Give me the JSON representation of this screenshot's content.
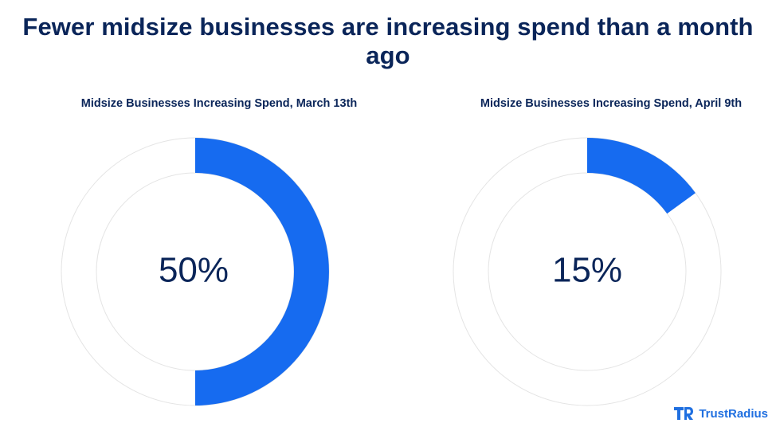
{
  "title": "Fewer midsize businesses are increasing spend than a month ago",
  "colors": {
    "accent": "#166bf0",
    "track": "#ffffff",
    "track_stroke": "#e4e4e4",
    "text": "#0a2559",
    "brand": "#1f6fe0"
  },
  "brand": {
    "name": "TrustRadius",
    "icon": "trustradius-logo-icon"
  },
  "chart_data": [
    {
      "type": "pie",
      "title": "Midsize Businesses Increasing Spend, March 13th",
      "value": 50,
      "label": "50%"
    },
    {
      "type": "pie",
      "title": "Midsize Businesses Increasing Spend, April 9th",
      "value": 15,
      "label": "15%"
    }
  ]
}
